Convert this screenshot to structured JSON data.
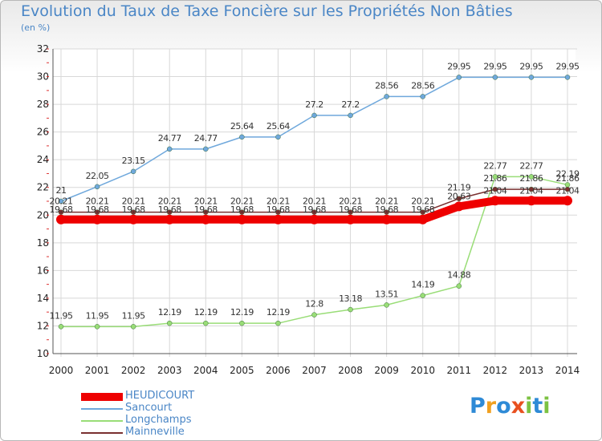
{
  "title": "Evolution du Taux de Taxe Foncière sur les Propriétés Non Bâties",
  "subtitle": "(en %)",
  "logo": {
    "text": "Proxiti",
    "letters": [
      "P",
      "r",
      "o",
      "x",
      "i",
      "t",
      "i"
    ],
    "colors": [
      "#2e8ad6",
      "#f0a020",
      "#2e8ad6",
      "#e85020",
      "#7cc242",
      "#2e8ad6",
      "#7cc242"
    ]
  },
  "chart_data": {
    "type": "line",
    "x": [
      2000,
      2001,
      2002,
      2003,
      2004,
      2005,
      2006,
      2007,
      2008,
      2009,
      2010,
      2011,
      2012,
      2013,
      2014
    ],
    "ylim": [
      10,
      32
    ],
    "yticks": [
      10,
      12,
      14,
      16,
      18,
      20,
      22,
      24,
      26,
      28,
      30,
      32
    ],
    "xlabel": "",
    "ylabel": "",
    "grid": true,
    "legend_position": "bottom-left",
    "series": [
      {
        "name": "HEUDICOURT",
        "color": "#ee0000",
        "values": [
          19.68,
          19.68,
          19.68,
          19.68,
          19.68,
          19.68,
          19.68,
          19.68,
          19.68,
          19.68,
          19.68,
          20.63,
          21.04,
          21.04,
          21.04
        ],
        "labels": [
          "19.68",
          "19.68",
          "19.68",
          "19.68",
          "19.68",
          "19.68",
          "19.68",
          "19.68",
          "19.68",
          "19.68",
          "19.68",
          "20.63",
          "21.04",
          "21.04",
          "21.04"
        ]
      },
      {
        "name": "Sancourt",
        "color": "#6fa8dc",
        "values": [
          21,
          22.05,
          23.15,
          24.77,
          24.77,
          25.64,
          25.64,
          27.2,
          27.2,
          28.56,
          28.56,
          29.95,
          29.95,
          29.95,
          29.95
        ],
        "labels": [
          "21",
          "22.05",
          "23.15",
          "24.77",
          "24.77",
          "25.64",
          "25.64",
          "27.2",
          "27.2",
          "28.56",
          "28.56",
          "29.95",
          "29.95",
          "29.95",
          "29.95"
        ]
      },
      {
        "name": "Longchamps",
        "color": "#99dd77",
        "values": [
          11.95,
          11.95,
          11.95,
          12.19,
          12.19,
          12.19,
          12.19,
          12.8,
          13.18,
          13.51,
          14.19,
          14.88,
          22.77,
          22.77,
          22.19
        ],
        "labels": [
          "11.95",
          "11.95",
          "11.95",
          "12.19",
          "12.19",
          "12.19",
          "12.19",
          "12.8",
          "13.18",
          "13.51",
          "14.19",
          "14.88",
          "22.77",
          "22.77",
          "22.19"
        ]
      },
      {
        "name": "Mainneville",
        "color": "#7a3030",
        "values": [
          20.21,
          20.21,
          20.21,
          20.21,
          20.21,
          20.21,
          20.21,
          20.21,
          20.21,
          20.21,
          20.21,
          21.19,
          21.86,
          21.86,
          21.86
        ],
        "labels": [
          "20.21",
          "20.21",
          "20.21",
          "20.21",
          "20.21",
          "20.21",
          "20.21",
          "20.21",
          "20.21",
          "20.21",
          "20.21",
          "21.19",
          "21.86",
          "21.86",
          "21.86"
        ]
      }
    ]
  }
}
